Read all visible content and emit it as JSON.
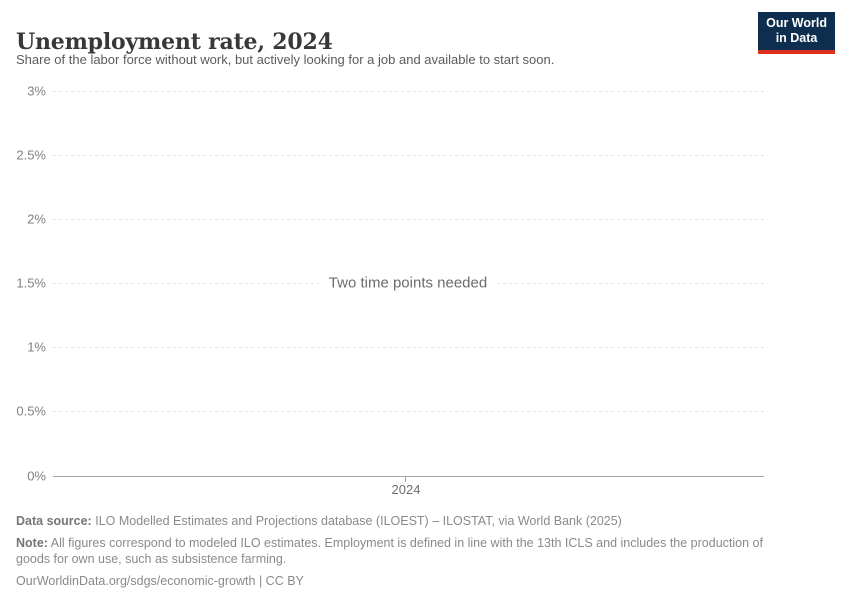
{
  "header": {
    "title": "Unemployment rate, 2024",
    "subtitle": "Share of the labor force without work, but actively looking for a job and available to start soon.",
    "logo": {
      "line1": "Our World",
      "line2": "in Data"
    }
  },
  "chart_data": {
    "type": "line",
    "title": "Unemployment rate, 2024",
    "series": [],
    "message": "Two time points needed",
    "xlabel": "",
    "ylabel": "",
    "ylim": [
      0,
      3
    ],
    "yticks": [
      "3%",
      "2.5%",
      "2%",
      "1.5%",
      "1%",
      "0.5%",
      "0%"
    ],
    "xticks": [
      "2024"
    ],
    "grid": "horizontal dashed gridlines at every 0.5%, solid baseline at 0%",
    "legend": "none",
    "note": "No data series plotted; placeholder message shown in plot area"
  },
  "footer": {
    "data_source_label": "Data source:",
    "data_source_text": "ILO Modelled Estimates and Projections database (ILOEST) – ILOSTAT, via World Bank (2025)",
    "note_label": "Note:",
    "note_text": "All figures correspond to modeled ILO estimates. Employment is defined in line with the 13th ICLS and includes the production of goods for own use, such as subsistence farming.",
    "url": "OurWorldinData.org/sdgs/economic-growth",
    "separator": "|",
    "license": "CC BY"
  },
  "colors": {
    "logo_navy": "#0d2e4f",
    "logo_red": "#dc2f1d",
    "title_text": "#383838",
    "subtitle_text": "#5b5b5b",
    "tick_label": "#818181",
    "gridline": "#e4e4e4",
    "axis_line": "#a6a6a6",
    "message_text": "#6b6b6b",
    "footer_text": "#8a8a8a"
  }
}
